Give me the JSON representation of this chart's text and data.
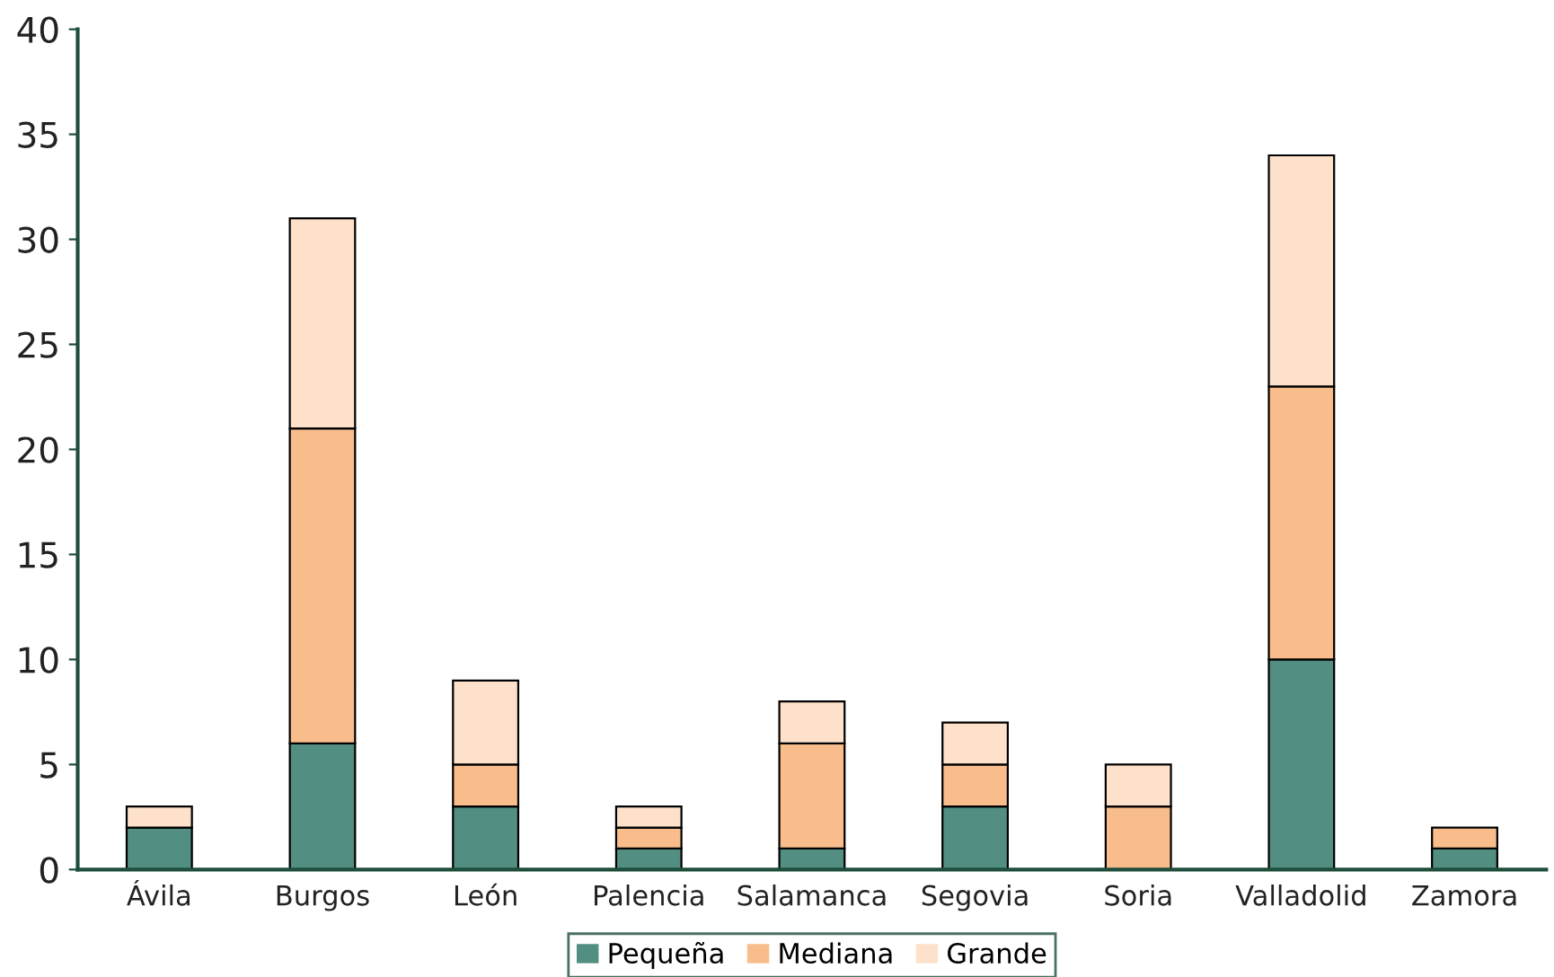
{
  "chart_data": {
    "type": "bar",
    "stacked": true,
    "categories": [
      "Ávila",
      "Burgos",
      "León",
      "Palencia",
      "Salamanca",
      "Segovia",
      "Soria",
      "Valladolid",
      "Zamora"
    ],
    "series": [
      {
        "name": "Pequeña",
        "color": "#528f82",
        "values": [
          2,
          6,
          3,
          1,
          1,
          3,
          0,
          10,
          1
        ]
      },
      {
        "name": "Mediana",
        "color": "#f8bd8b",
        "values": [
          0,
          15,
          2,
          1,
          5,
          2,
          3,
          13,
          1
        ]
      },
      {
        "name": "Grande",
        "color": "#fde1ca",
        "values": [
          1,
          10,
          4,
          1,
          2,
          2,
          2,
          11,
          0
        ]
      }
    ],
    "ylim": [
      0,
      40
    ],
    "yticks": [
      0,
      5,
      10,
      15,
      20,
      25,
      30,
      35,
      40
    ],
    "grid": false,
    "legend": "bottom"
  }
}
